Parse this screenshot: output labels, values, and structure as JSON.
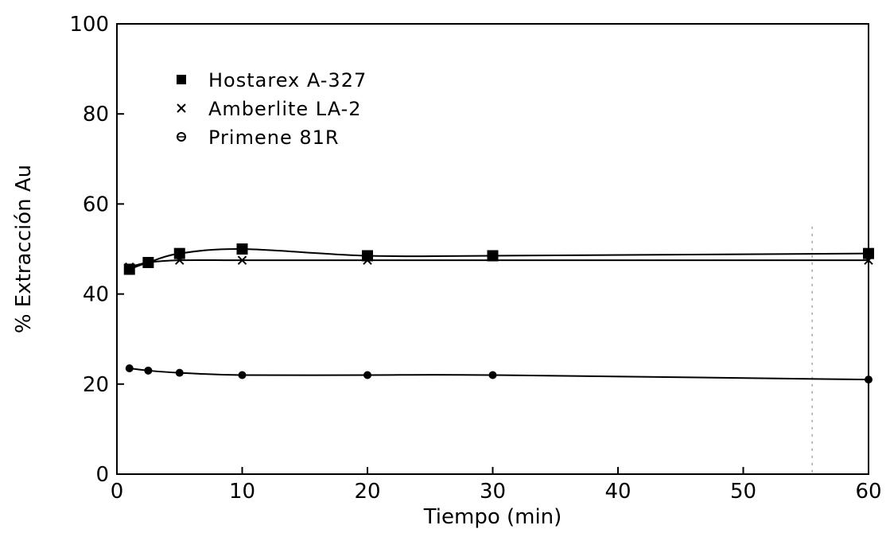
{
  "chart_data": {
    "type": "line",
    "xlabel": "Tiempo (min)",
    "ylabel": "% Extracción Au",
    "xlim": [
      0,
      60
    ],
    "ylim": [
      0,
      100
    ],
    "xticks": [
      0,
      10,
      20,
      30,
      40,
      50,
      60
    ],
    "yticks": [
      0,
      20,
      40,
      60,
      80,
      100
    ],
    "grid": false,
    "legend_position": "top-left",
    "series": [
      {
        "name": "Hostarex A-327",
        "marker": "square",
        "x": [
          1,
          2.5,
          5,
          10,
          20,
          30,
          60
        ],
        "y": [
          45.5,
          47,
          49,
          50,
          48.5,
          48.5,
          49
        ]
      },
      {
        "name": "Amberlite LA-2",
        "marker": "x",
        "x": [
          1,
          2.5,
          5,
          10,
          20,
          60
        ],
        "y": [
          46,
          47,
          47.5,
          47.5,
          47.5,
          47.5
        ]
      },
      {
        "name": "Primene 81R",
        "marker": "circle",
        "x": [
          1,
          2.5,
          5,
          10,
          20,
          30,
          60
        ],
        "y": [
          23.5,
          23,
          22.5,
          22,
          22,
          22,
          21
        ]
      }
    ]
  }
}
